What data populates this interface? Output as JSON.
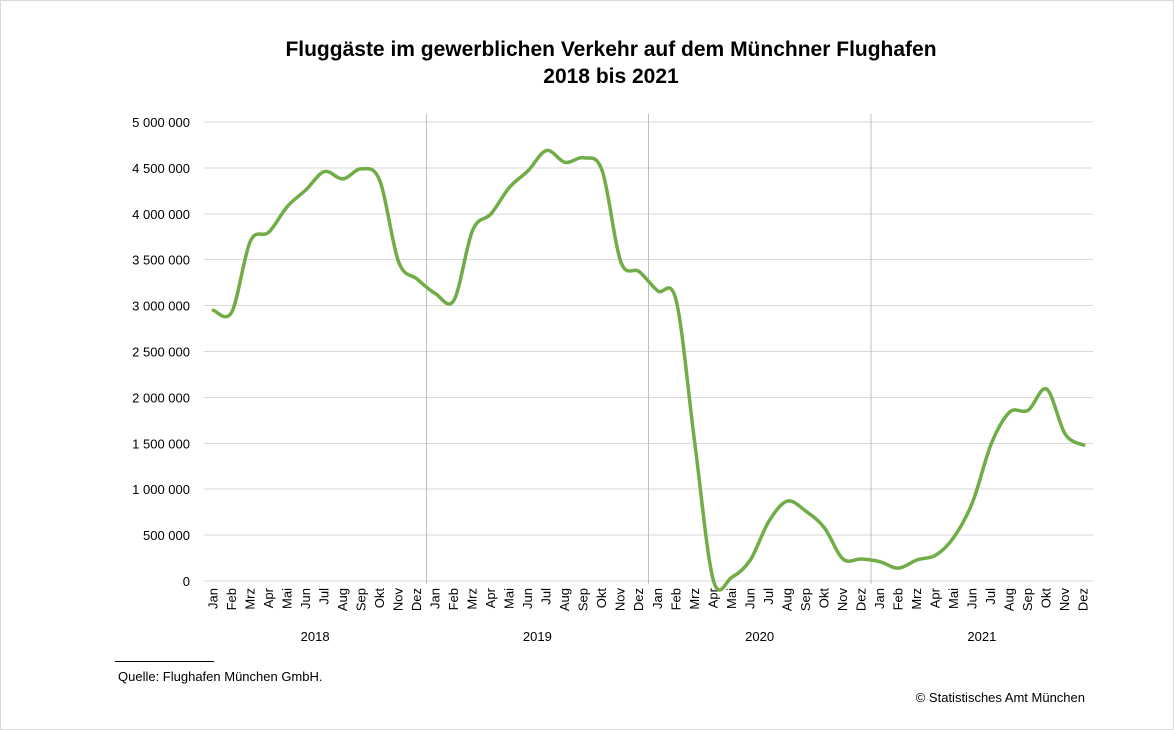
{
  "chart_data": {
    "type": "line",
    "title": "Fluggäste im gewerblichen Verkehr auf dem Münchner Flughafen",
    "subtitle": "2018 bis 2021",
    "xlabel": "",
    "ylabel": "",
    "ylim": [
      0,
      5000000
    ],
    "yticks": [
      0,
      500000,
      1000000,
      1500000,
      2000000,
      2500000,
      3000000,
      3500000,
      4000000,
      4500000,
      5000000
    ],
    "ytick_labels": [
      "0",
      "500 000",
      "1 000 000",
      "1 500 000",
      "2 000 000",
      "2 500 000",
      "3 000 000",
      "3 500 000",
      "4 000 000",
      "4 500 000",
      "5 000 000"
    ],
    "grid": true,
    "legend": "none",
    "line_color": "#70ad47",
    "gridline_color": "#d9d9d9",
    "month_labels": [
      "Jan",
      "Feb",
      "Mrz",
      "Apr",
      "Mai",
      "Jun",
      "Jul",
      "Aug",
      "Sep",
      "Okt",
      "Nov",
      "Dez"
    ],
    "years": [
      "2018",
      "2019",
      "2020",
      "2021"
    ],
    "series": [
      {
        "name": "Fluggäste",
        "values": [
          2950000,
          2930000,
          3700000,
          3800000,
          4080000,
          4260000,
          4460000,
          4380000,
          4490000,
          4360000,
          3480000,
          3290000,
          3130000,
          3060000,
          3820000,
          4000000,
          4290000,
          4470000,
          4690000,
          4560000,
          4610000,
          4470000,
          3480000,
          3370000,
          3160000,
          3050000,
          1500000,
          10000,
          40000,
          230000,
          650000,
          870000,
          760000,
          580000,
          240000,
          240000,
          210000,
          140000,
          230000,
          280000,
          480000,
          860000,
          1490000,
          1840000,
          1860000,
          2090000,
          1600000,
          1480000
        ]
      }
    ]
  },
  "footer": {
    "source": "Quelle: Flughafen München GmbH.",
    "copyright": "© Statistisches Amt München"
  }
}
